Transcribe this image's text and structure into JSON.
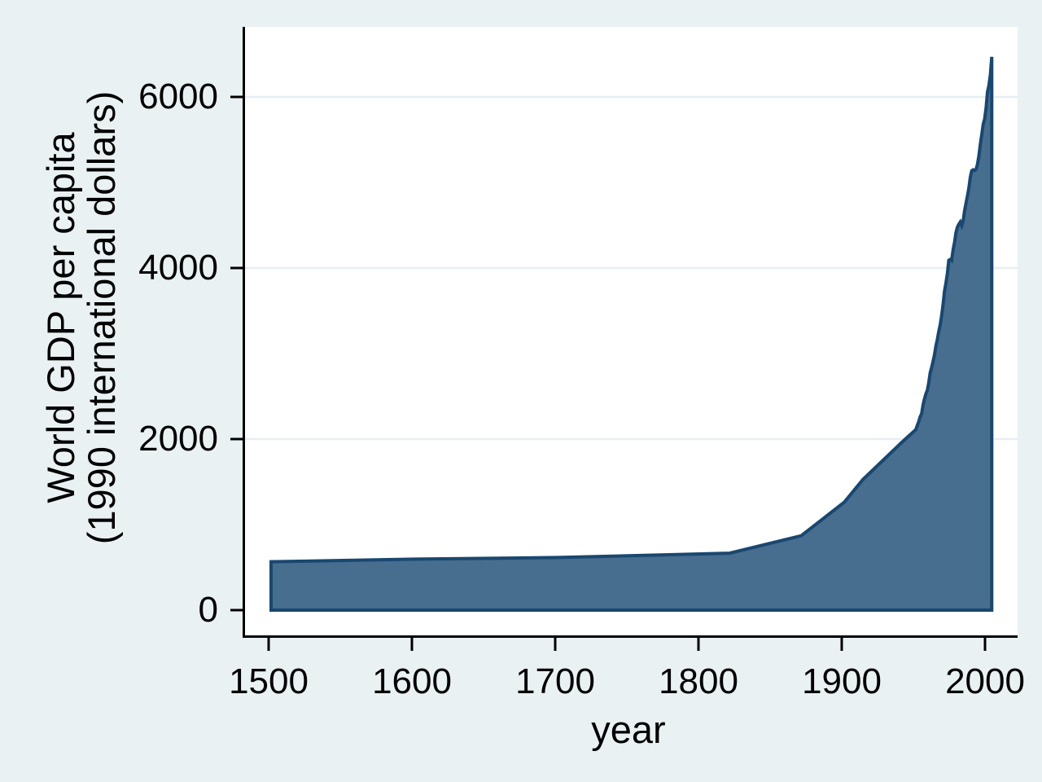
{
  "chart_data": {
    "type": "area",
    "title": "",
    "xlabel": "year",
    "ylabel_lines": [
      "World GDP per capita",
      "(1990 international dollars)"
    ],
    "x_ticks": [
      1500,
      1600,
      1700,
      1800,
      1900,
      2000
    ],
    "y_ticks": [
      0,
      2000,
      4000,
      6000
    ],
    "x_plot_range": [
      1481.8,
      2021.0
    ],
    "y_plot_range": [
      -295,
      6819
    ],
    "grid": true,
    "gridline_values": [
      2000,
      4000,
      6000
    ],
    "legend": "none",
    "series": [
      {
        "name": "World GDP per capita (1990 international dollars)",
        "points": [
          [
            1500,
            566
          ],
          [
            1600,
            596
          ],
          [
            1700,
            615
          ],
          [
            1820,
            666
          ],
          [
            1870,
            870
          ],
          [
            1900,
            1261
          ],
          [
            1913,
            1526
          ],
          [
            1940,
            1958
          ],
          [
            1950,
            2111
          ],
          [
            1951,
            2160
          ],
          [
            1952,
            2205
          ],
          [
            1953,
            2260
          ],
          [
            1954,
            2295
          ],
          [
            1955,
            2395
          ],
          [
            1956,
            2470
          ],
          [
            1957,
            2530
          ],
          [
            1958,
            2570
          ],
          [
            1959,
            2660
          ],
          [
            1960,
            2773
          ],
          [
            1961,
            2836
          ],
          [
            1962,
            2911
          ],
          [
            1963,
            2985
          ],
          [
            1964,
            3091
          ],
          [
            1965,
            3163
          ],
          [
            1966,
            3260
          ],
          [
            1967,
            3339
          ],
          [
            1968,
            3442
          ],
          [
            1969,
            3576
          ],
          [
            1970,
            3729
          ],
          [
            1971,
            3825
          ],
          [
            1972,
            3939
          ],
          [
            1973,
            4091
          ],
          [
            1974,
            4100
          ],
          [
            1975,
            4088
          ],
          [
            1976,
            4213
          ],
          [
            1977,
            4303
          ],
          [
            1978,
            4414
          ],
          [
            1979,
            4478
          ],
          [
            1980,
            4511
          ],
          [
            1981,
            4538
          ],
          [
            1982,
            4497
          ],
          [
            1983,
            4551
          ],
          [
            1984,
            4670
          ],
          [
            1985,
            4756
          ],
          [
            1986,
            4843
          ],
          [
            1987,
            4937
          ],
          [
            1988,
            5061
          ],
          [
            1989,
            5137
          ],
          [
            1990,
            5149
          ],
          [
            1991,
            5140
          ],
          [
            1992,
            5155
          ],
          [
            1993,
            5211
          ],
          [
            1994,
            5313
          ],
          [
            1995,
            5444
          ],
          [
            1996,
            5560
          ],
          [
            1997,
            5683
          ],
          [
            1998,
            5740
          ],
          [
            1999,
            5871
          ],
          [
            2000,
            6057
          ],
          [
            2001,
            6135
          ],
          [
            2002,
            6262
          ],
          [
            2003,
            6469
          ]
        ],
        "baseline": 0
      }
    ],
    "colors": {
      "background": "#eaf1f3",
      "plot_background": "#ffffff",
      "gridline": "#e6eff2",
      "axis": "#000000",
      "area_fill": "#476d8f",
      "area_stroke": "#1a476f"
    }
  }
}
